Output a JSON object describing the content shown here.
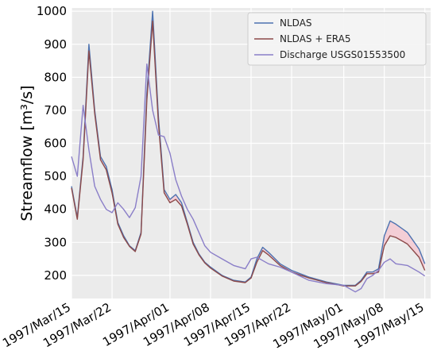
{
  "chart_data": {
    "type": "line",
    "title": "",
    "xlabel": "",
    "ylabel": "Streamflow [m³/s]",
    "ylim": [
      130,
      1010
    ],
    "xlim": [
      "1997-03-15",
      "1997-05-16"
    ],
    "yticks": [
      200,
      300,
      400,
      500,
      600,
      700,
      800,
      900,
      1000
    ],
    "xticks": [
      {
        "date": "1997-03-15",
        "label": "1997/Mar/15"
      },
      {
        "date": "1997-03-22",
        "label": "1997/Mar/22"
      },
      {
        "date": "1997-04-01",
        "label": "1997/Apr/01"
      },
      {
        "date": "1997-04-08",
        "label": "1997/Apr/08"
      },
      {
        "date": "1997-04-15",
        "label": "1997/Apr/15"
      },
      {
        "date": "1997-04-22",
        "label": "1997/Apr/22"
      },
      {
        "date": "1997-05-01",
        "label": "1997/May/01"
      },
      {
        "date": "1997-05-08",
        "label": "1997/May/08"
      },
      {
        "date": "1997-05-15",
        "label": "1997/May/15"
      }
    ],
    "grid": true,
    "legend_position": "top-right",
    "fill_between": {
      "series": [
        "NLDAS",
        "NLDAS + ERA5"
      ],
      "color": "#f4c9d2"
    },
    "series": [
      {
        "name": "NLDAS",
        "color": "#4c72b0",
        "x": [
          "1997-03-15",
          "1997-03-16",
          "1997-03-17",
          "1997-03-18",
          "1997-03-19",
          "1997-03-20",
          "1997-03-21",
          "1997-03-22",
          "1997-03-23",
          "1997-03-24",
          "1997-03-25",
          "1997-03-26",
          "1997-03-27",
          "1997-03-28",
          "1997-03-29",
          "1997-03-30",
          "1997-03-31",
          "1997-04-01",
          "1997-04-02",
          "1997-04-03",
          "1997-04-04",
          "1997-04-05",
          "1997-04-06",
          "1997-04-07",
          "1997-04-08",
          "1997-04-10",
          "1997-04-12",
          "1997-04-14",
          "1997-04-15",
          "1997-04-16",
          "1997-04-17",
          "1997-04-18",
          "1997-04-20",
          "1997-04-22",
          "1997-04-25",
          "1997-04-28",
          "1997-05-01",
          "1997-05-03",
          "1997-05-04",
          "1997-05-05",
          "1997-05-06",
          "1997-05-07",
          "1997-05-08",
          "1997-05-09",
          "1997-05-10",
          "1997-05-12",
          "1997-05-14",
          "1997-05-15"
        ],
        "values": [
          470,
          375,
          560,
          900,
          700,
          560,
          530,
          460,
          360,
          320,
          290,
          275,
          330,
          750,
          1000,
          680,
          460,
          430,
          445,
          420,
          360,
          300,
          265,
          240,
          225,
          200,
          185,
          180,
          195,
          250,
          285,
          270,
          235,
          215,
          195,
          180,
          170,
          170,
          185,
          210,
          210,
          220,
          320,
          365,
          355,
          330,
          280,
          235
        ]
      },
      {
        "name": "NLDAS + ERA5",
        "color": "#8c4a4a",
        "x": [
          "1997-03-15",
          "1997-03-16",
          "1997-03-17",
          "1997-03-18",
          "1997-03-19",
          "1997-03-20",
          "1997-03-21",
          "1997-03-22",
          "1997-03-23",
          "1997-03-24",
          "1997-03-25",
          "1997-03-26",
          "1997-03-27",
          "1997-03-28",
          "1997-03-29",
          "1997-03-30",
          "1997-03-31",
          "1997-04-01",
          "1997-04-02",
          "1997-04-03",
          "1997-04-04",
          "1997-04-05",
          "1997-04-06",
          "1997-04-07",
          "1997-04-08",
          "1997-04-10",
          "1997-04-12",
          "1997-04-14",
          "1997-04-15",
          "1997-04-16",
          "1997-04-17",
          "1997-04-18",
          "1997-04-20",
          "1997-04-22",
          "1997-04-25",
          "1997-04-28",
          "1997-05-01",
          "1997-05-03",
          "1997-05-04",
          "1997-05-05",
          "1997-05-06",
          "1997-05-07",
          "1997-05-08",
          "1997-05-09",
          "1997-05-10",
          "1997-05-12",
          "1997-05-14",
          "1997-05-15"
        ],
        "values": [
          465,
          370,
          550,
          880,
          690,
          550,
          520,
          450,
          355,
          315,
          288,
          272,
          325,
          730,
          970,
          660,
          450,
          420,
          430,
          410,
          355,
          295,
          262,
          238,
          222,
          198,
          183,
          178,
          192,
          240,
          275,
          262,
          230,
          210,
          192,
          178,
          168,
          168,
          182,
          205,
          205,
          210,
          290,
          320,
          315,
          295,
          255,
          215
        ]
      },
      {
        "name": "Discharge USGS01553500",
        "color": "#8a7ec8",
        "x": [
          "1997-03-15",
          "1997-03-16",
          "1997-03-17",
          "1997-03-18",
          "1997-03-19",
          "1997-03-20",
          "1997-03-21",
          "1997-03-22",
          "1997-03-23",
          "1997-03-24",
          "1997-03-25",
          "1997-03-26",
          "1997-03-27",
          "1997-03-28",
          "1997-03-29",
          "1997-03-30",
          "1997-03-31",
          "1997-04-01",
          "1997-04-02",
          "1997-04-03",
          "1997-04-04",
          "1997-04-05",
          "1997-04-06",
          "1997-04-07",
          "1997-04-08",
          "1997-04-10",
          "1997-04-12",
          "1997-04-14",
          "1997-04-15",
          "1997-04-16",
          "1997-04-17",
          "1997-04-18",
          "1997-04-20",
          "1997-04-22",
          "1997-04-25",
          "1997-04-28",
          "1997-05-01",
          "1997-05-03",
          "1997-05-04",
          "1997-05-05",
          "1997-05-06",
          "1997-05-07",
          "1997-05-08",
          "1997-05-09",
          "1997-05-10",
          "1997-05-12",
          "1997-05-14",
          "1997-05-15"
        ],
        "values": [
          560,
          500,
          715,
          580,
          470,
          430,
          400,
          390,
          420,
          400,
          375,
          405,
          500,
          840,
          700,
          625,
          620,
          570,
          490,
          440,
          400,
          370,
          330,
          290,
          270,
          250,
          230,
          220,
          250,
          255,
          245,
          235,
          225,
          210,
          185,
          175,
          170,
          150,
          160,
          190,
          200,
          215,
          240,
          250,
          235,
          230,
          210,
          198
        ]
      }
    ]
  }
}
